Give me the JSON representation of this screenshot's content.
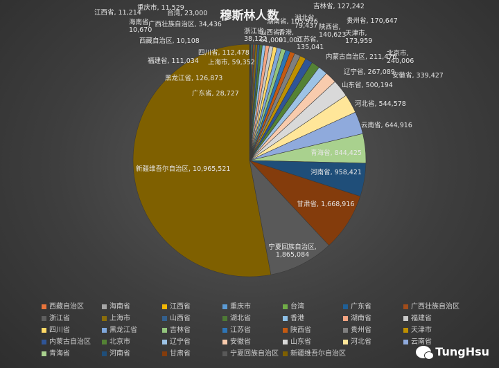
{
  "watermark": {
    "text": "TungHsu",
    "icon": "wechat-icon"
  },
  "chart_data": {
    "type": "pie",
    "title": "穆斯林人数",
    "slices": [
      {
        "name": "西藏自治区",
        "value": 10108,
        "color": "#e8743b"
      },
      {
        "name": "海南省",
        "value": 10670,
        "color": "#a5a5a5"
      },
      {
        "name": "江西省",
        "value": 11214,
        "color": "#f2b705"
      },
      {
        "name": "重庆市",
        "value": 11529,
        "color": "#5b9bd5"
      },
      {
        "name": "台湾",
        "value": 23000,
        "color": "#70ad47"
      },
      {
        "name": "广东省",
        "value": 28727,
        "color": "#1f5f96"
      },
      {
        "name": "广西壮族自治区",
        "value": 34436,
        "color": "#a14c1a"
      },
      {
        "name": "浙江省",
        "value": 38122,
        "color": "#5f5f5f"
      },
      {
        "name": "上海市",
        "value": 59352,
        "color": "#8a6d0b"
      },
      {
        "name": "山西省",
        "value": 61000,
        "color": "#34608d"
      },
      {
        "name": "湖北省",
        "value": 79437,
        "color": "#4e7a35"
      },
      {
        "name": "香港",
        "value": 91000,
        "color": "#8ec1e8"
      },
      {
        "name": "湖南省",
        "value": 105926,
        "color": "#f4a582"
      },
      {
        "name": "福建省",
        "value": 111034,
        "color": "#c9c9c9"
      },
      {
        "name": "四川省",
        "value": 112478,
        "color": "#ffd966"
      },
      {
        "name": "黑龙江省",
        "value": 126873,
        "color": "#7fa7db"
      },
      {
        "name": "吉林省",
        "value": 127242,
        "color": "#93c47d"
      },
      {
        "name": "江苏省",
        "value": 135041,
        "color": "#2e75b6"
      },
      {
        "name": "陕西省",
        "value": 140623,
        "color": "#c55a11"
      },
      {
        "name": "贵州省",
        "value": 170647,
        "color": "#7f7f7f"
      },
      {
        "name": "天津市",
        "value": 173959,
        "color": "#bf9000"
      },
      {
        "name": "内蒙古自治区",
        "value": 211476,
        "color": "#2f5597"
      },
      {
        "name": "北京市",
        "value": 240006,
        "color": "#548235"
      },
      {
        "name": "辽宁省",
        "value": 267089,
        "color": "#9dc3e6"
      },
      {
        "name": "安徽省",
        "value": 339427,
        "color": "#f8cbad"
      },
      {
        "name": "山东省",
        "value": 500194,
        "color": "#d9d9d9"
      },
      {
        "name": "河北省",
        "value": 544578,
        "color": "#ffe699"
      },
      {
        "name": "云南省",
        "value": 644916,
        "color": "#8faadc"
      },
      {
        "name": "青海省",
        "value": 844425,
        "color": "#a9d18e"
      },
      {
        "name": "河南省",
        "value": 958421,
        "color": "#1f4e79"
      },
      {
        "name": "甘肃省",
        "value": 1668916,
        "color": "#843c0c"
      },
      {
        "name": "宁夏回族自治区",
        "value": 1865084,
        "color": "#595959"
      },
      {
        "name": "新疆维吾尔自治区",
        "value": 10965521,
        "color": "#7f6000"
      }
    ],
    "labels": [
      {
        "name": "宁夏回族自治区",
        "text": "宁夏回族自治区,\n1,865,084"
      },
      {
        "name": "甘肃省",
        "text": "甘肃省, 1,668,916"
      },
      {
        "name": "河南省",
        "text": "河南省, 958,421"
      },
      {
        "name": "青海省",
        "text": "青海省, 844,425"
      },
      {
        "name": "云南省",
        "text": "云南省, 644,916"
      },
      {
        "name": "河北省",
        "text": "河北省, 544,578"
      },
      {
        "name": "山东省",
        "text": "山东省, 500,194"
      },
      {
        "name": "安徽省",
        "text": "安徽省, 339,427"
      },
      {
        "name": "辽宁省",
        "text": "辽宁省, 267,089"
      },
      {
        "name": "北京市",
        "text": "北京市,\n240,006"
      },
      {
        "name": "内蒙古自治区",
        "text": "内蒙古自治区, 211,476"
      },
      {
        "name": "天津市",
        "text": "天津市,\n173,959"
      },
      {
        "name": "贵州省",
        "text": "贵州省, 170,647"
      },
      {
        "name": "陕西省",
        "text": "陕西省,\n140,623"
      },
      {
        "name": "江苏省",
        "text": "江苏省,\n135,041"
      },
      {
        "name": "吉林省",
        "text": "吉林省, 127,242"
      },
      {
        "name": "湖北省",
        "text": "湖北省,\n79,437"
      },
      {
        "name": "湖南省",
        "text": "湖南省, 105,926"
      },
      {
        "name": "香港",
        "text": "香港,\n91,000"
      },
      {
        "name": "山西省",
        "text": "山西省,\n61,000"
      },
      {
        "name": "浙江省",
        "text": "浙江省,\n38,122"
      },
      {
        "name": "重庆市",
        "text": "重庆市, 11,529"
      },
      {
        "name": "台湾",
        "text": "台湾, 23,000"
      },
      {
        "name": "江西省",
        "text": "江西省, 11,214"
      },
      {
        "name": "海南省",
        "text": "海南省,\n10,670"
      },
      {
        "name": "广西壮族自治区",
        "text": "广西壮族自治区, 34,436"
      },
      {
        "name": "西藏自治区",
        "text": "西藏自治区, 10,108"
      },
      {
        "name": "四川省",
        "text": "四川省, 112,478"
      },
      {
        "name": "上海市",
        "text": "上海市, 59,352"
      },
      {
        "name": "福建省",
        "text": "福建省, 111,034"
      },
      {
        "name": "黑龙江省",
        "text": "黑龙江省, 126,873"
      },
      {
        "name": "广东省",
        "text": "广东省, 28,727"
      },
      {
        "name": "新疆维吾尔自治区",
        "text": "新疆维吾尔自治区, 10,965,521"
      }
    ],
    "legend": {
      "placement": "bottom",
      "columns": 7
    }
  }
}
